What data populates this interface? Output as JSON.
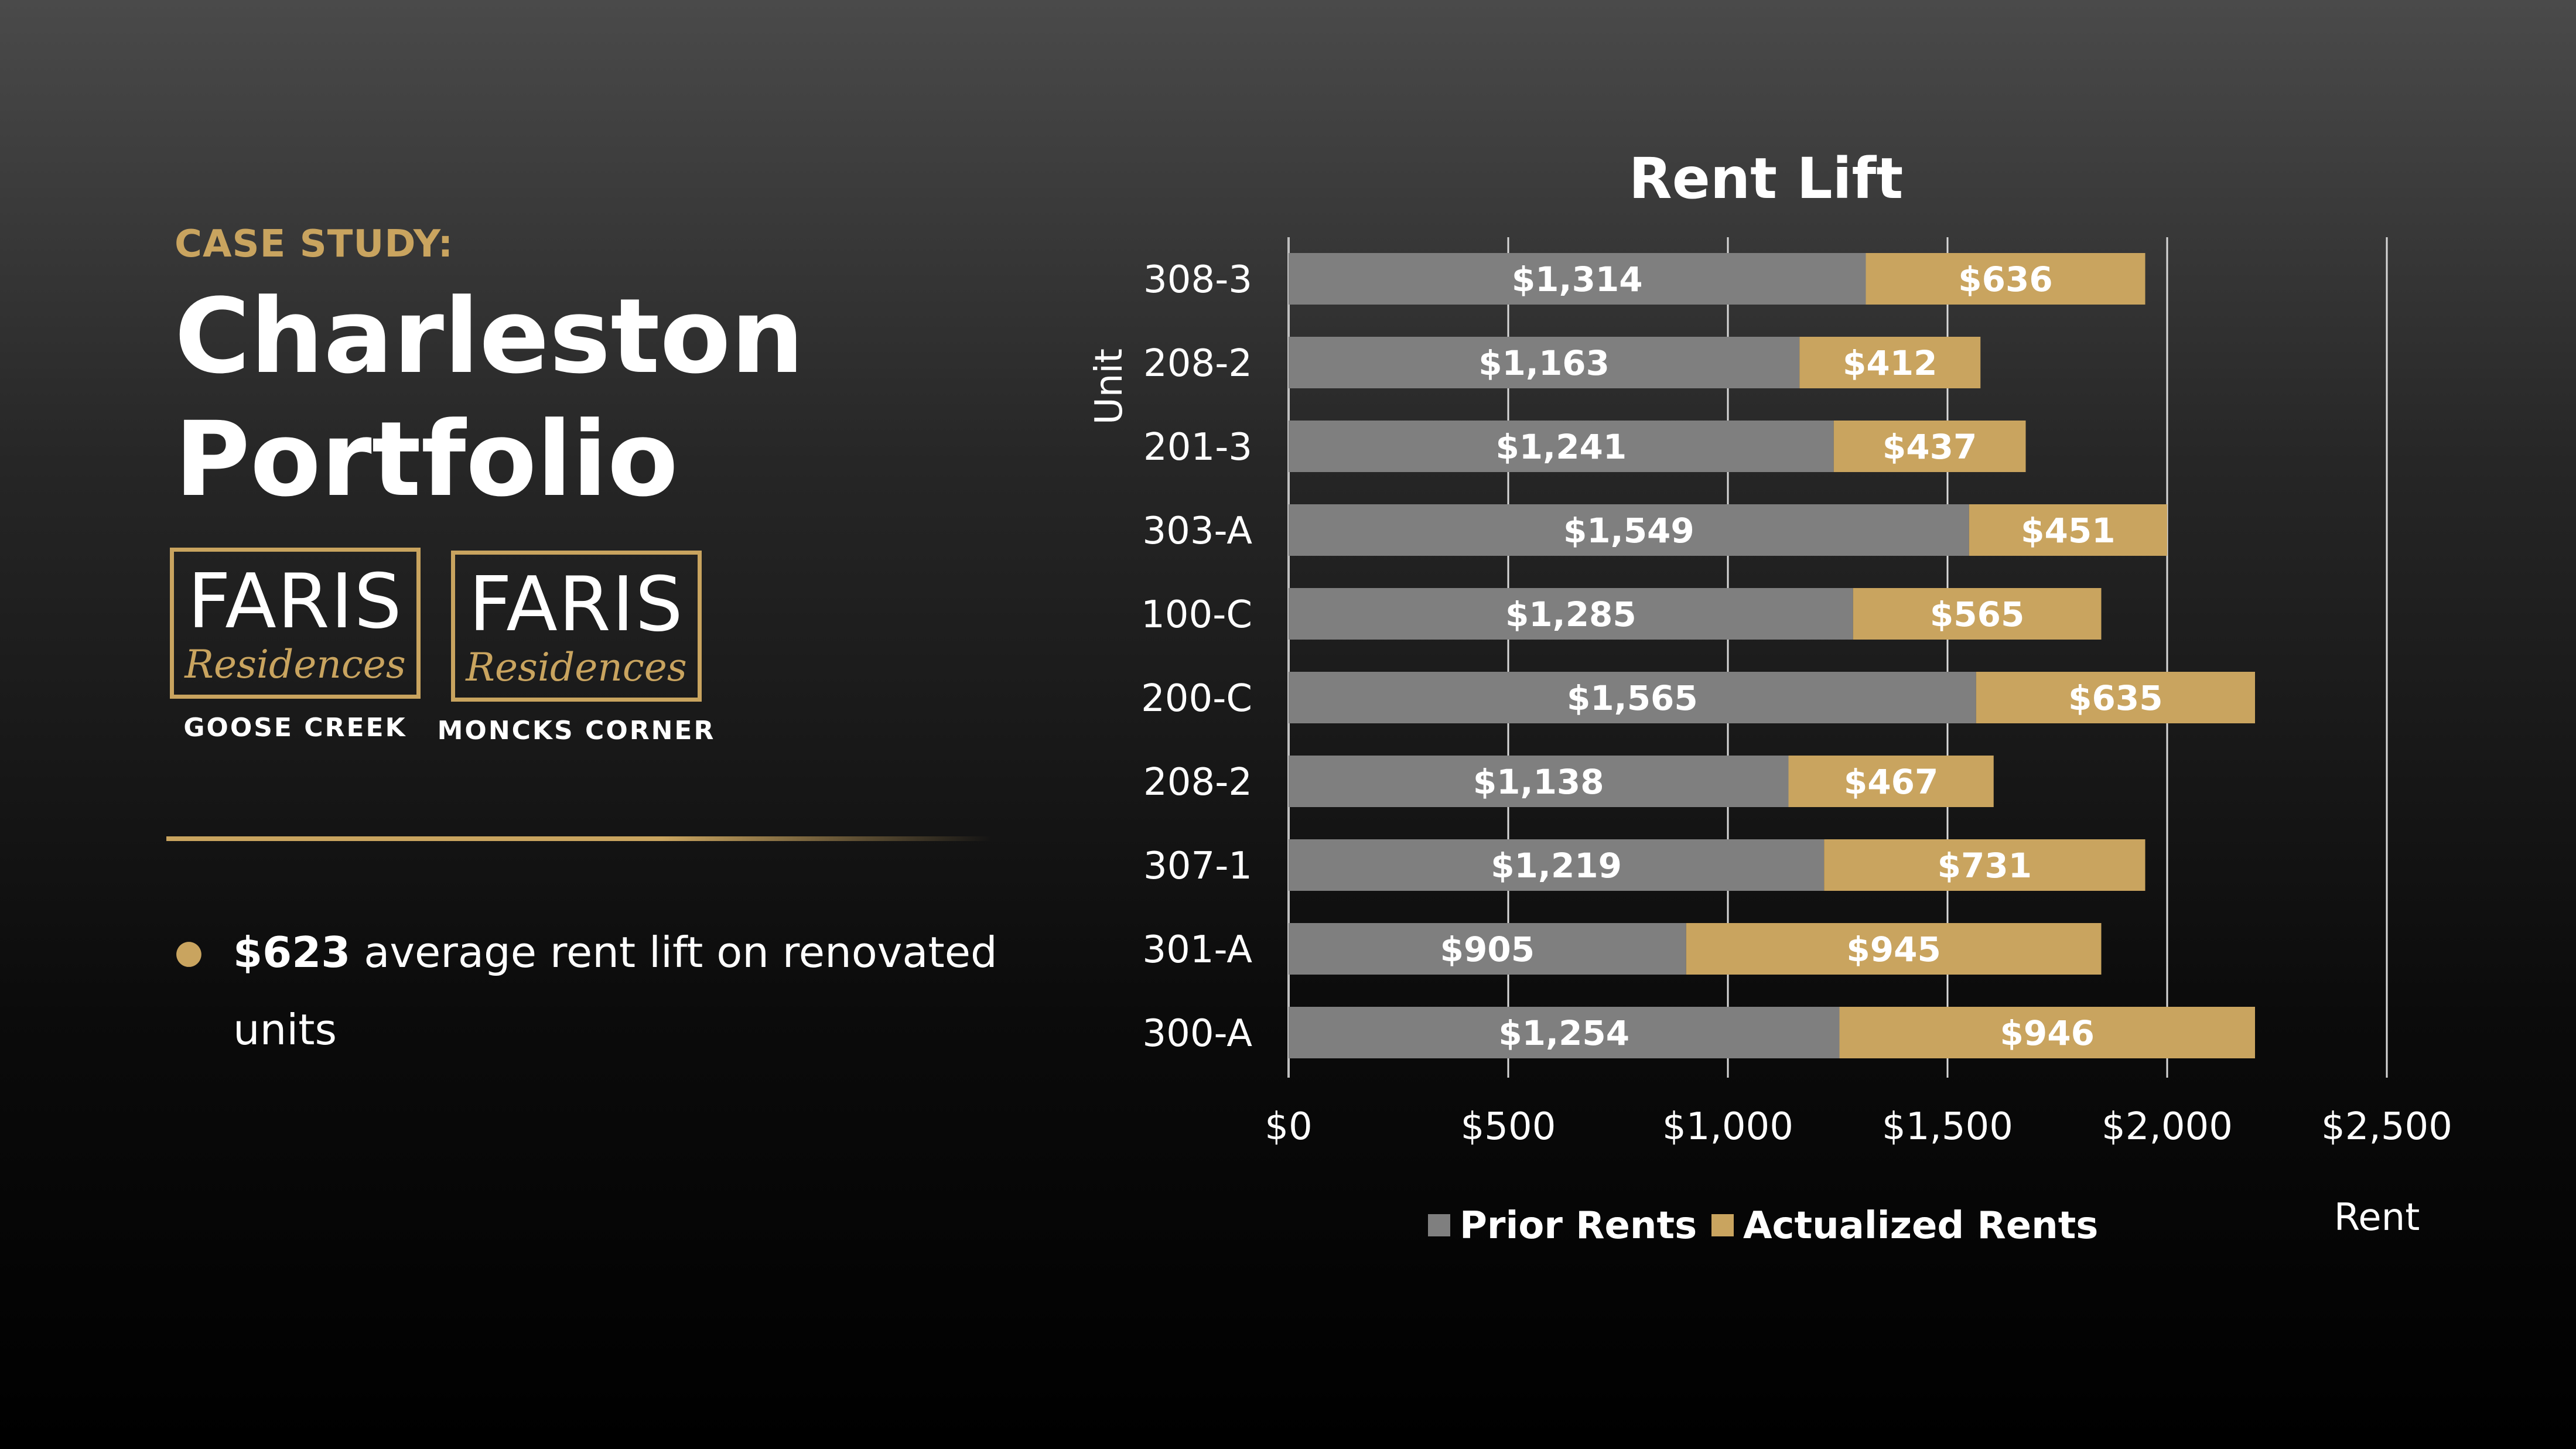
{
  "left": {
    "kicker": "CASE STUDY:",
    "title_line1": "Charleston",
    "title_line2": "Portfolio",
    "logos": [
      {
        "brand": "FARIS",
        "script": "Residences",
        "location": "GOOSE CREEK"
      },
      {
        "brand": "FARIS",
        "script": "Residences",
        "location": "MONCKS CORNER"
      }
    ],
    "bullet": {
      "highlight": "$623",
      "text": " average rent lift on renovated units"
    }
  },
  "colors": {
    "prior": "#7f7f7f",
    "actualized": "#c9a45f",
    "gold": "#c9a45f"
  },
  "chart_data": {
    "type": "bar",
    "orientation": "horizontal",
    "stacked": true,
    "title": "Rent Lift",
    "xlabel": "Rent",
    "ylabel": "Unit",
    "xlim": [
      0,
      2500
    ],
    "x_ticks": [
      "$0",
      "$500",
      "$1,000",
      "$1,500",
      "$2,000",
      "$2,500"
    ],
    "x_tick_values": [
      0,
      500,
      1000,
      1500,
      2000,
      2500
    ],
    "grid": "vertical",
    "legend": "bottom",
    "categories": [
      "308-3",
      "208-2",
      "201-3",
      "303-A",
      "100-C",
      "200-C",
      "208-2",
      "307-1",
      "301-A",
      "300-A"
    ],
    "series": [
      {
        "name": "Prior Rents",
        "color": "#7f7f7f",
        "values": [
          1314,
          1163,
          1241,
          1549,
          1285,
          1565,
          1138,
          1219,
          905,
          1254
        ],
        "labels": [
          "$1,314",
          "$1,163",
          "$1,241",
          "$1,549",
          "$1,285",
          "$1,565",
          "$1,138",
          "$1,219",
          "$905",
          "$1,254"
        ]
      },
      {
        "name": "Actualized Rents",
        "color": "#c9a45f",
        "values": [
          636,
          412,
          437,
          451,
          565,
          635,
          467,
          731,
          945,
          946
        ],
        "labels": [
          "$636",
          "$412",
          "$437",
          "$451",
          "$565",
          "$635",
          "$467",
          "$731",
          "$945",
          "$946"
        ]
      }
    ]
  }
}
